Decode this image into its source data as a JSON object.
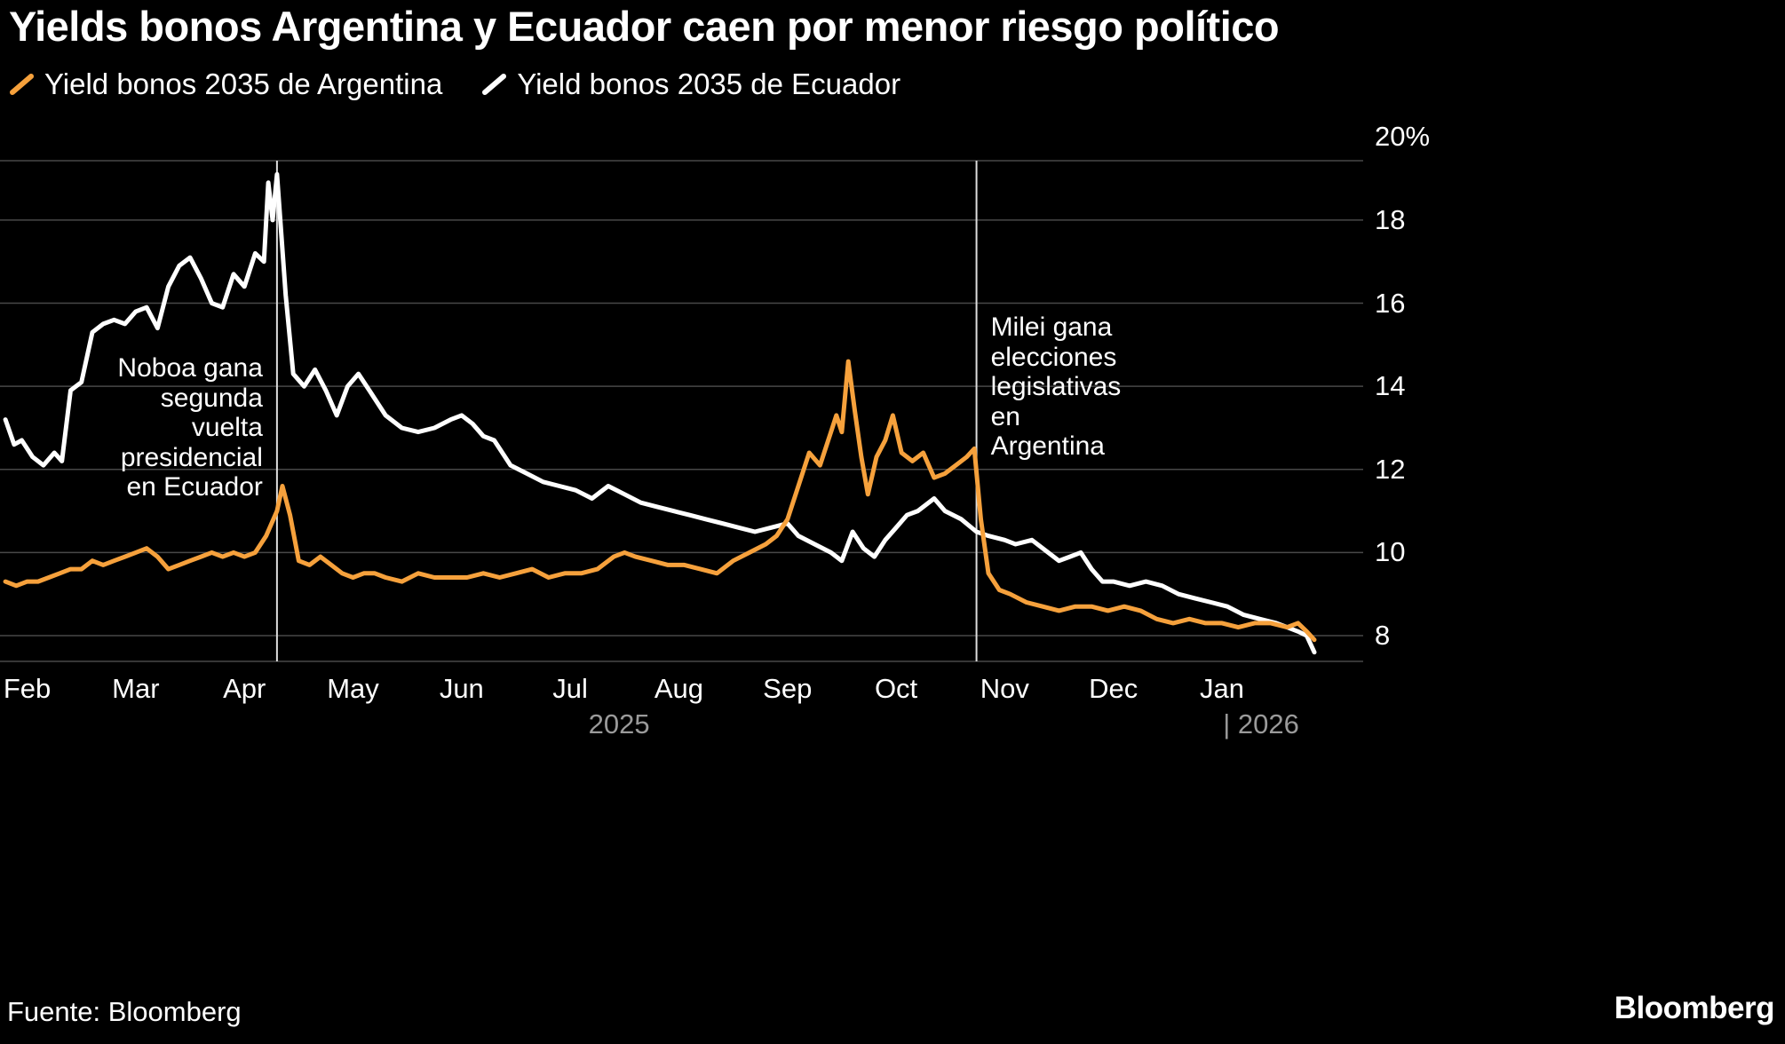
{
  "title": "Yields bonos Argentina y Ecuador caen por menor riesgo político",
  "legend": {
    "items": [
      {
        "label": "Yield bonos 2035 de Argentina",
        "color": "#F6A13C"
      },
      {
        "label": "Yield bonos 2035 de Ecuador",
        "color": "#FFFFFF"
      }
    ]
  },
  "footer": {
    "source": "Fuente: Bloomberg",
    "brand": "Bloomberg"
  },
  "chart_data": {
    "type": "line",
    "title": "Yields bonos Argentina y Ecuador caen por menor riesgo político",
    "x_unit": "months since Feb 2025 (0 = Feb 2025, 11 = Jan 2026)",
    "ylim": [
      7.38,
      19.43
    ],
    "grid": true,
    "grid_color": "#484848",
    "event_line_color": "#dddddd",
    "y_ticks": [
      {
        "v": 8,
        "label": "8",
        "grid": true
      },
      {
        "v": 10,
        "label": "10",
        "grid": true
      },
      {
        "v": 12,
        "label": "12",
        "grid": true
      },
      {
        "v": 14,
        "label": "14",
        "grid": true
      },
      {
        "v": 16,
        "label": "16",
        "grid": true
      },
      {
        "v": 18,
        "label": "18",
        "grid": true
      },
      {
        "v": 20,
        "label": "20%",
        "grid": false
      }
    ],
    "x_ticks": [
      {
        "x": 0,
        "label": "Feb"
      },
      {
        "x": 1,
        "label": "Mar"
      },
      {
        "x": 2,
        "label": "Apr"
      },
      {
        "x": 3,
        "label": "May"
      },
      {
        "x": 4,
        "label": "Jun"
      },
      {
        "x": 5,
        "label": "Jul"
      },
      {
        "x": 6,
        "label": "Aug"
      },
      {
        "x": 7,
        "label": "Sep"
      },
      {
        "x": 8,
        "label": "Oct"
      },
      {
        "x": 9,
        "label": "Nov"
      },
      {
        "x": 10,
        "label": "Dec"
      },
      {
        "x": 11,
        "label": "Jan"
      }
    ],
    "year_labels": [
      {
        "x": 5.45,
        "label": "2025"
      },
      {
        "x": 11.36,
        "label": "| 2026"
      }
    ],
    "events": [
      {
        "x": 2.3,
        "align": "right",
        "text": "Noboa gana\nsegunda\nvuelta\npresidencial\nen Ecuador"
      },
      {
        "x": 8.74,
        "align": "left",
        "text": "Milei gana\nelecciones\nlegislativas\nen\nArgentina"
      }
    ],
    "series": [
      {
        "name": "Yield bonos 2035 de Ecuador",
        "color": "#FFFFFF",
        "points": [
          [
            -0.2,
            13.2
          ],
          [
            -0.12,
            12.6
          ],
          [
            -0.05,
            12.7
          ],
          [
            0.05,
            12.3
          ],
          [
            0.15,
            12.1
          ],
          [
            0.25,
            12.4
          ],
          [
            0.32,
            12.2
          ],
          [
            0.4,
            13.9
          ],
          [
            0.5,
            14.1
          ],
          [
            0.6,
            15.3
          ],
          [
            0.7,
            15.5
          ],
          [
            0.8,
            15.6
          ],
          [
            0.9,
            15.5
          ],
          [
            1.0,
            15.8
          ],
          [
            1.1,
            15.9
          ],
          [
            1.2,
            15.4
          ],
          [
            1.3,
            16.4
          ],
          [
            1.4,
            16.9
          ],
          [
            1.5,
            17.1
          ],
          [
            1.6,
            16.6
          ],
          [
            1.7,
            16.0
          ],
          [
            1.8,
            15.9
          ],
          [
            1.9,
            16.7
          ],
          [
            2.0,
            16.4
          ],
          [
            2.1,
            17.2
          ],
          [
            2.18,
            17.0
          ],
          [
            2.22,
            18.9
          ],
          [
            2.26,
            18.0
          ],
          [
            2.3,
            19.1
          ],
          [
            2.38,
            16.2
          ],
          [
            2.45,
            14.3
          ],
          [
            2.55,
            14.0
          ],
          [
            2.65,
            14.4
          ],
          [
            2.75,
            13.9
          ],
          [
            2.85,
            13.3
          ],
          [
            2.95,
            14.0
          ],
          [
            3.05,
            14.3
          ],
          [
            3.15,
            13.9
          ],
          [
            3.3,
            13.3
          ],
          [
            3.45,
            13.0
          ],
          [
            3.6,
            12.9
          ],
          [
            3.75,
            13.0
          ],
          [
            3.9,
            13.2
          ],
          [
            4.0,
            13.3
          ],
          [
            4.1,
            13.1
          ],
          [
            4.2,
            12.8
          ],
          [
            4.3,
            12.7
          ],
          [
            4.45,
            12.1
          ],
          [
            4.6,
            11.9
          ],
          [
            4.75,
            11.7
          ],
          [
            4.9,
            11.6
          ],
          [
            5.05,
            11.5
          ],
          [
            5.2,
            11.3
          ],
          [
            5.35,
            11.6
          ],
          [
            5.5,
            11.4
          ],
          [
            5.65,
            11.2
          ],
          [
            5.8,
            11.1
          ],
          [
            5.95,
            11.0
          ],
          [
            6.1,
            10.9
          ],
          [
            6.25,
            10.8
          ],
          [
            6.4,
            10.7
          ],
          [
            6.55,
            10.6
          ],
          [
            6.7,
            10.5
          ],
          [
            6.85,
            10.6
          ],
          [
            7.0,
            10.7
          ],
          [
            7.1,
            10.4
          ],
          [
            7.25,
            10.2
          ],
          [
            7.4,
            10.0
          ],
          [
            7.5,
            9.8
          ],
          [
            7.6,
            10.5
          ],
          [
            7.7,
            10.1
          ],
          [
            7.8,
            9.9
          ],
          [
            7.9,
            10.3
          ],
          [
            8.0,
            10.6
          ],
          [
            8.1,
            10.9
          ],
          [
            8.2,
            11.0
          ],
          [
            8.35,
            11.3
          ],
          [
            8.45,
            11.0
          ],
          [
            8.6,
            10.8
          ],
          [
            8.74,
            10.5
          ],
          [
            8.85,
            10.4
          ],
          [
            9.0,
            10.3
          ],
          [
            9.1,
            10.2
          ],
          [
            9.25,
            10.3
          ],
          [
            9.4,
            10.0
          ],
          [
            9.5,
            9.8
          ],
          [
            9.6,
            9.9
          ],
          [
            9.7,
            10.0
          ],
          [
            9.8,
            9.6
          ],
          [
            9.9,
            9.3
          ],
          [
            10.0,
            9.3
          ],
          [
            10.15,
            9.2
          ],
          [
            10.3,
            9.3
          ],
          [
            10.45,
            9.2
          ],
          [
            10.6,
            9.0
          ],
          [
            10.75,
            8.9
          ],
          [
            10.9,
            8.8
          ],
          [
            11.05,
            8.7
          ],
          [
            11.2,
            8.5
          ],
          [
            11.35,
            8.4
          ],
          [
            11.5,
            8.3
          ],
          [
            11.6,
            8.2
          ],
          [
            11.7,
            8.1
          ],
          [
            11.78,
            8.0
          ],
          [
            11.85,
            7.6
          ]
        ]
      },
      {
        "name": "Yield bonos 2035 de Argentina",
        "color": "#F6A13C",
        "points": [
          [
            -0.2,
            9.3
          ],
          [
            -0.1,
            9.2
          ],
          [
            0.0,
            9.3
          ],
          [
            0.1,
            9.3
          ],
          [
            0.2,
            9.4
          ],
          [
            0.3,
            9.5
          ],
          [
            0.4,
            9.6
          ],
          [
            0.5,
            9.6
          ],
          [
            0.6,
            9.8
          ],
          [
            0.7,
            9.7
          ],
          [
            0.8,
            9.8
          ],
          [
            0.9,
            9.9
          ],
          [
            1.0,
            10.0
          ],
          [
            1.1,
            10.1
          ],
          [
            1.2,
            9.9
          ],
          [
            1.3,
            9.6
          ],
          [
            1.4,
            9.7
          ],
          [
            1.5,
            9.8
          ],
          [
            1.6,
            9.9
          ],
          [
            1.7,
            10.0
          ],
          [
            1.8,
            9.9
          ],
          [
            1.9,
            10.0
          ],
          [
            2.0,
            9.9
          ],
          [
            2.1,
            10.0
          ],
          [
            2.2,
            10.4
          ],
          [
            2.3,
            11.0
          ],
          [
            2.35,
            11.6
          ],
          [
            2.42,
            10.9
          ],
          [
            2.5,
            9.8
          ],
          [
            2.6,
            9.7
          ],
          [
            2.7,
            9.9
          ],
          [
            2.8,
            9.7
          ],
          [
            2.9,
            9.5
          ],
          [
            3.0,
            9.4
          ],
          [
            3.1,
            9.5
          ],
          [
            3.2,
            9.5
          ],
          [
            3.3,
            9.4
          ],
          [
            3.45,
            9.3
          ],
          [
            3.6,
            9.5
          ],
          [
            3.75,
            9.4
          ],
          [
            3.9,
            9.4
          ],
          [
            4.05,
            9.4
          ],
          [
            4.2,
            9.5
          ],
          [
            4.35,
            9.4
          ],
          [
            4.5,
            9.5
          ],
          [
            4.65,
            9.6
          ],
          [
            4.8,
            9.4
          ],
          [
            4.95,
            9.5
          ],
          [
            5.1,
            9.5
          ],
          [
            5.25,
            9.6
          ],
          [
            5.4,
            9.9
          ],
          [
            5.5,
            10.0
          ],
          [
            5.6,
            9.9
          ],
          [
            5.75,
            9.8
          ],
          [
            5.9,
            9.7
          ],
          [
            6.05,
            9.7
          ],
          [
            6.2,
            9.6
          ],
          [
            6.35,
            9.5
          ],
          [
            6.5,
            9.8
          ],
          [
            6.65,
            10.0
          ],
          [
            6.8,
            10.2
          ],
          [
            6.9,
            10.4
          ],
          [
            7.0,
            10.8
          ],
          [
            7.1,
            11.6
          ],
          [
            7.2,
            12.4
          ],
          [
            7.3,
            12.1
          ],
          [
            7.4,
            12.9
          ],
          [
            7.45,
            13.3
          ],
          [
            7.5,
            12.9
          ],
          [
            7.56,
            14.6
          ],
          [
            7.62,
            13.4
          ],
          [
            7.68,
            12.3
          ],
          [
            7.74,
            11.4
          ],
          [
            7.82,
            12.3
          ],
          [
            7.9,
            12.7
          ],
          [
            7.97,
            13.3
          ],
          [
            8.05,
            12.4
          ],
          [
            8.15,
            12.2
          ],
          [
            8.25,
            12.4
          ],
          [
            8.35,
            11.8
          ],
          [
            8.45,
            11.9
          ],
          [
            8.55,
            12.1
          ],
          [
            8.65,
            12.3
          ],
          [
            8.72,
            12.5
          ],
          [
            8.78,
            10.8
          ],
          [
            8.85,
            9.5
          ],
          [
            8.95,
            9.1
          ],
          [
            9.05,
            9.0
          ],
          [
            9.2,
            8.8
          ],
          [
            9.35,
            8.7
          ],
          [
            9.5,
            8.6
          ],
          [
            9.65,
            8.7
          ],
          [
            9.8,
            8.7
          ],
          [
            9.95,
            8.6
          ],
          [
            10.1,
            8.7
          ],
          [
            10.25,
            8.6
          ],
          [
            10.4,
            8.4
          ],
          [
            10.55,
            8.3
          ],
          [
            10.7,
            8.4
          ],
          [
            10.85,
            8.3
          ],
          [
            11.0,
            8.3
          ],
          [
            11.15,
            8.2
          ],
          [
            11.3,
            8.3
          ],
          [
            11.45,
            8.3
          ],
          [
            11.6,
            8.2
          ],
          [
            11.7,
            8.3
          ],
          [
            11.78,
            8.1
          ],
          [
            11.85,
            7.9
          ]
        ]
      }
    ]
  }
}
